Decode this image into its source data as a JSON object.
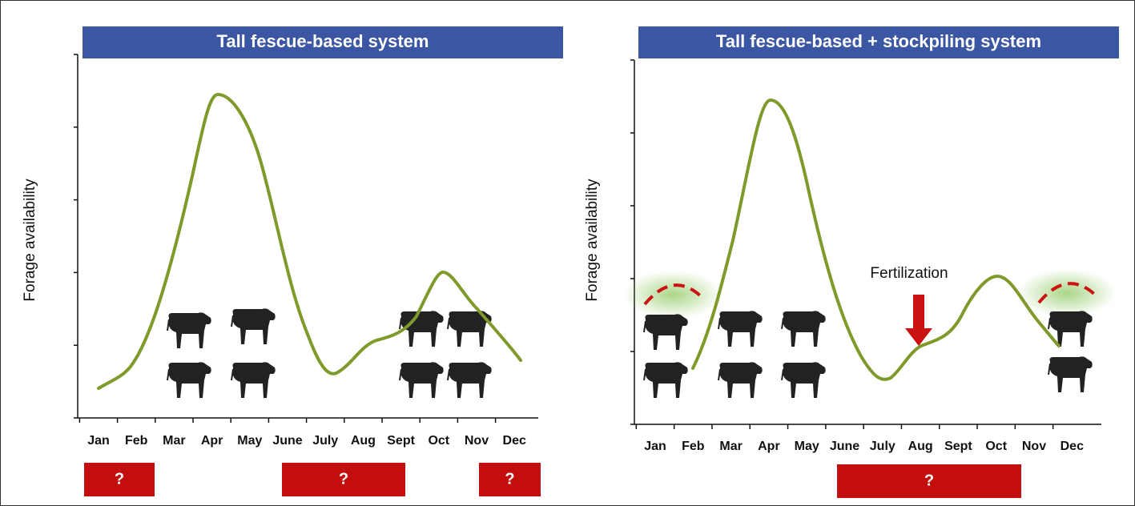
{
  "panels": [
    {
      "title": "Tall fescue-based system",
      "y_label": "Forage availability",
      "months": [
        "Jan",
        "Feb",
        "Mar",
        "Apr",
        "May",
        "June",
        "July",
        "Aug",
        "Sept",
        "Oct",
        "Nov",
        "Dec"
      ],
      "gap_boxes": [
        "?",
        "?",
        "?"
      ]
    },
    {
      "title": "Tall fescue-based + stockpiling system",
      "y_label": "Forage availability",
      "months": [
        "Jan",
        "Feb",
        "Mar",
        "Apr",
        "May",
        "June",
        "July",
        "Aug",
        "Sept",
        "Oct",
        "Nov",
        "Dec"
      ],
      "gap_boxes": [
        "?"
      ],
      "annotation": "Fertilization"
    }
  ]
}
